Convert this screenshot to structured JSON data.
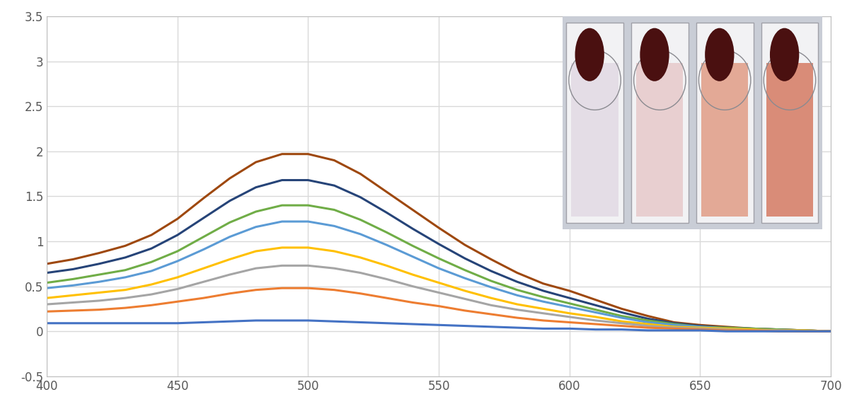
{
  "chart_data": {
    "type": "line",
    "x": [
      400,
      410,
      420,
      430,
      440,
      450,
      460,
      470,
      480,
      490,
      500,
      510,
      520,
      530,
      540,
      550,
      560,
      570,
      580,
      590,
      600,
      610,
      620,
      630,
      640,
      650,
      660,
      670,
      680,
      690,
      700
    ],
    "series": [
      {
        "color": "#9E480E",
        "values": [
          0.75,
          0.8,
          0.87,
          0.95,
          1.07,
          1.25,
          1.48,
          1.7,
          1.88,
          1.97,
          1.97,
          1.9,
          1.75,
          1.55,
          1.35,
          1.15,
          0.96,
          0.8,
          0.65,
          0.53,
          0.45,
          0.35,
          0.25,
          0.17,
          0.1,
          0.07,
          0.05,
          0.03,
          0.02,
          0.01,
          0.0
        ]
      },
      {
        "color": "#264478",
        "values": [
          0.65,
          0.69,
          0.75,
          0.82,
          0.92,
          1.07,
          1.26,
          1.45,
          1.6,
          1.68,
          1.68,
          1.62,
          1.49,
          1.32,
          1.14,
          0.97,
          0.81,
          0.67,
          0.55,
          0.45,
          0.37,
          0.29,
          0.21,
          0.14,
          0.09,
          0.06,
          0.04,
          0.03,
          0.02,
          0.01,
          0.0
        ]
      },
      {
        "color": "#70AD47",
        "values": [
          0.54,
          0.58,
          0.63,
          0.68,
          0.77,
          0.89,
          1.05,
          1.21,
          1.33,
          1.4,
          1.4,
          1.35,
          1.24,
          1.1,
          0.95,
          0.81,
          0.68,
          0.56,
          0.46,
          0.38,
          0.31,
          0.24,
          0.17,
          0.12,
          0.08,
          0.05,
          0.04,
          0.03,
          0.02,
          0.01,
          0.0
        ]
      },
      {
        "color": "#5B9BD5",
        "values": [
          0.48,
          0.51,
          0.55,
          0.6,
          0.67,
          0.78,
          0.91,
          1.05,
          1.16,
          1.22,
          1.22,
          1.17,
          1.08,
          0.96,
          0.83,
          0.7,
          0.59,
          0.49,
          0.4,
          0.33,
          0.27,
          0.21,
          0.15,
          0.1,
          0.07,
          0.05,
          0.03,
          0.02,
          0.01,
          0.01,
          0.0
        ]
      },
      {
        "color": "#FFC000",
        "values": [
          0.37,
          0.4,
          0.43,
          0.46,
          0.52,
          0.6,
          0.7,
          0.8,
          0.89,
          0.93,
          0.93,
          0.89,
          0.82,
          0.73,
          0.63,
          0.54,
          0.45,
          0.37,
          0.3,
          0.25,
          0.2,
          0.16,
          0.11,
          0.08,
          0.05,
          0.04,
          0.03,
          0.02,
          0.01,
          0.01,
          0.0
        ]
      },
      {
        "color": "#A5A5A5",
        "values": [
          0.3,
          0.32,
          0.34,
          0.37,
          0.41,
          0.47,
          0.55,
          0.63,
          0.7,
          0.73,
          0.73,
          0.7,
          0.65,
          0.58,
          0.5,
          0.43,
          0.36,
          0.29,
          0.24,
          0.2,
          0.16,
          0.12,
          0.09,
          0.06,
          0.04,
          0.03,
          0.02,
          0.01,
          0.01,
          0.0,
          0.0
        ]
      },
      {
        "color": "#ED7D31",
        "values": [
          0.22,
          0.23,
          0.24,
          0.26,
          0.29,
          0.33,
          0.37,
          0.42,
          0.46,
          0.48,
          0.48,
          0.46,
          0.42,
          0.37,
          0.32,
          0.28,
          0.23,
          0.19,
          0.15,
          0.12,
          0.1,
          0.08,
          0.06,
          0.04,
          0.03,
          0.02,
          0.01,
          0.01,
          0.0,
          0.0,
          0.0
        ]
      },
      {
        "color": "#4472C4",
        "values": [
          0.09,
          0.09,
          0.09,
          0.09,
          0.09,
          0.09,
          0.1,
          0.11,
          0.12,
          0.12,
          0.12,
          0.11,
          0.1,
          0.09,
          0.08,
          0.07,
          0.06,
          0.05,
          0.04,
          0.03,
          0.03,
          0.02,
          0.02,
          0.01,
          0.01,
          0.01,
          0.0,
          0.0,
          0.0,
          0.0,
          0.0
        ]
      }
    ],
    "xlim": [
      400,
      700
    ],
    "xticks": [
      400,
      450,
      500,
      550,
      600,
      650,
      700
    ],
    "ylim": [
      -0.5,
      3.5
    ],
    "yticks": [
      -0.5,
      0,
      0.5,
      1,
      1.5,
      2,
      2.5,
      3,
      3.5
    ],
    "grid": true
  }
}
